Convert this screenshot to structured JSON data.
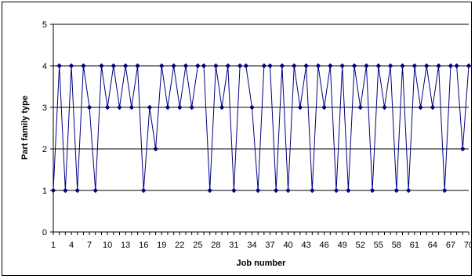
{
  "chart_data": {
    "type": "line",
    "title": "",
    "xlabel": "Job number",
    "ylabel": "Part family type",
    "xlim": [
      1,
      70
    ],
    "ylim": [
      0,
      5
    ],
    "x_tick_labels": [
      "1",
      "4",
      "7",
      "10",
      "13",
      "16",
      "19",
      "22",
      "25",
      "28",
      "31",
      "34",
      "37",
      "40",
      "43",
      "46",
      "49",
      "52",
      "55",
      "58",
      "61",
      "64",
      "67",
      "70"
    ],
    "y_tick_labels": [
      "0",
      "1",
      "2",
      "3",
      "4",
      "5"
    ],
    "grid": "horizontal",
    "legend": "none",
    "series": [
      {
        "color": "#000080",
        "marker": "diamond",
        "x": [
          1,
          2,
          3,
          4,
          5,
          6,
          7,
          8,
          9,
          10,
          11,
          12,
          13,
          14,
          15,
          16,
          17,
          18,
          19,
          20,
          21,
          22,
          23,
          24,
          25,
          26,
          27,
          28,
          29,
          30,
          31,
          32,
          33,
          34,
          35,
          36,
          37,
          38,
          39,
          40,
          41,
          42,
          43,
          44,
          45,
          46,
          47,
          48,
          49,
          50,
          51,
          52,
          53,
          54,
          55,
          56,
          57,
          58,
          59,
          60,
          61,
          62,
          63,
          64,
          65,
          66,
          67,
          68,
          69,
          70
        ],
        "values": [
          1,
          4,
          1,
          4,
          1,
          4,
          3,
          1,
          4,
          3,
          4,
          3,
          4,
          3,
          4,
          1,
          3,
          2,
          4,
          3,
          4,
          3,
          4,
          3,
          4,
          4,
          1,
          4,
          3,
          4,
          1,
          4,
          4,
          3,
          1,
          4,
          4,
          1,
          4,
          1,
          4,
          3,
          4,
          1,
          4,
          3,
          4,
          1,
          4,
          1,
          4,
          3,
          4,
          1,
          4,
          3,
          4,
          1,
          4,
          1,
          4,
          3,
          4,
          3,
          4,
          1,
          4,
          4,
          2,
          4
        ]
      }
    ]
  }
}
